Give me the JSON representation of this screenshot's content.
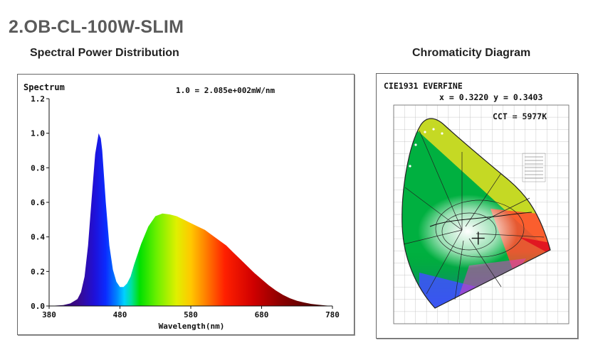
{
  "page": {
    "title": "2.OB-CL-100W-SLIM",
    "spd_section_title": "Spectral Power Distribution",
    "cie_section_title": "Chromaticity Diagram"
  },
  "chart_data": [
    {
      "type": "area",
      "title": "Spectrum",
      "annotation": "1.0 = 2.085e+002mW/nm",
      "xlabel": "Wavelength(nm)",
      "ylabel": "",
      "xlim": [
        380,
        780
      ],
      "ylim": [
        0,
        1.2
      ],
      "x_ticks": [
        380,
        480,
        580,
        680,
        780
      ],
      "y_ticks": [
        0.0,
        0.2,
        0.4,
        0.6,
        0.8,
        1.0,
        1.2
      ],
      "y_tick_labels": [
        "0.0",
        "0.2",
        "0.4",
        "0.6",
        "0.8",
        "1.0",
        "1.2"
      ],
      "grid": false,
      "fill": "spectral-colors",
      "series": [
        {
          "x": [
            380,
            400,
            410,
            420,
            425,
            430,
            435,
            440,
            445,
            450,
            453,
            455,
            460,
            465,
            470,
            475,
            480,
            485,
            490,
            495,
            500,
            510,
            520,
            530,
            540,
            550,
            560,
            570,
            580,
            590,
            600,
            610,
            620,
            630,
            640,
            650,
            660,
            670,
            680,
            690,
            700,
            710,
            720,
            730,
            740,
            750,
            760,
            770,
            780
          ],
          "values": [
            0.0,
            0.005,
            0.015,
            0.04,
            0.08,
            0.17,
            0.35,
            0.62,
            0.88,
            1.0,
            0.97,
            0.9,
            0.6,
            0.35,
            0.21,
            0.14,
            0.11,
            0.11,
            0.13,
            0.17,
            0.24,
            0.36,
            0.46,
            0.52,
            0.535,
            0.53,
            0.52,
            0.5,
            0.48,
            0.46,
            0.44,
            0.41,
            0.38,
            0.35,
            0.31,
            0.27,
            0.23,
            0.19,
            0.155,
            0.12,
            0.09,
            0.065,
            0.045,
            0.03,
            0.02,
            0.012,
            0.007,
            0.003,
            0.0
          ]
        }
      ]
    },
    {
      "type": "scatter",
      "title": "CIE1931  EVERFINE",
      "coordinates_label": "x = 0.3220  y = 0.3403",
      "cct_label": "CCT = 5977K",
      "xlabel": "",
      "ylabel": "",
      "point": {
        "x": 0.322,
        "y": 0.3403
      },
      "cct_k": 5977,
      "xlim": [
        0,
        0.8
      ],
      "ylim": [
        0,
        0.9
      ],
      "grid": true,
      "series": [
        {
          "name": "",
          "x": [
            0.322
          ],
          "values": [
            0.3403
          ]
        }
      ]
    }
  ]
}
